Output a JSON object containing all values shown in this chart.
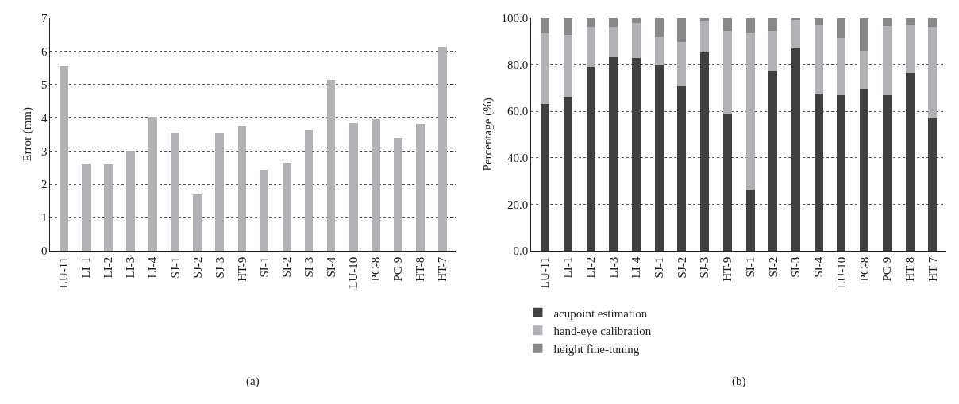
{
  "chart_data": [
    {
      "type": "bar",
      "ylabel": "Error (mm)",
      "annotations": [
        "(a)"
      ],
      "categories": [
        "LU-11",
        "LI-1",
        "LI-2",
        "LI-3",
        "LI-4",
        "SJ-1",
        "SJ-2",
        "SJ-3",
        "HT-9",
        "SI-1",
        "SI-2",
        "SI-3",
        "SI-4",
        "LU-10",
        "PC-8",
        "PC-9",
        "HT-8",
        "HT-7"
      ],
      "values": [
        5.57,
        2.63,
        2.59,
        3.0,
        4.04,
        3.55,
        1.7,
        3.53,
        3.74,
        2.44,
        2.65,
        3.63,
        5.13,
        3.85,
        3.96,
        3.39,
        3.81,
        6.13
      ],
      "color": "#b1b2b6",
      "ylim": [
        0,
        7
      ],
      "yticks": [
        0,
        1,
        2,
        3,
        4,
        5,
        6,
        7
      ],
      "grid": "y"
    },
    {
      "type": "bar",
      "stacked": true,
      "ylabel": "Percentage (%)",
      "annotations": [
        "(b)"
      ],
      "categories": [
        "LU-11",
        "LI-1",
        "LI-2",
        "LI-3",
        "LI-4",
        "SJ-1",
        "SJ-2",
        "SJ-3",
        "HT-9",
        "SI-1",
        "SI-2",
        "SI-3",
        "SI-4",
        "LU-10",
        "PC-8",
        "PC-9",
        "HT-8",
        "HT-7"
      ],
      "series": [
        {
          "name": "acupoint estimation",
          "color": "#404041",
          "values": [
            63.2,
            66.1,
            78.9,
            83.3,
            82.9,
            79.7,
            71.0,
            85.1,
            58.9,
            26.3,
            77.1,
            86.9,
            67.6,
            66.8,
            69.4,
            66.8,
            76.4,
            57.0
          ]
        },
        {
          "name": "hand-eye calibration",
          "color": "#b1b2b6",
          "values": [
            30.3,
            26.8,
            17.1,
            12.8,
            15.1,
            12.4,
            18.8,
            13.9,
            35.7,
            67.6,
            17.2,
            12.5,
            29.2,
            24.5,
            16.4,
            29.6,
            20.7,
            39.1
          ]
        },
        {
          "name": "height fine-tuning",
          "color": "#87888a",
          "values": [
            6.5,
            7.1,
            4.0,
            3.9,
            2.0,
            7.9,
            10.2,
            1.0,
            5.4,
            6.1,
            5.7,
            0.6,
            3.2,
            8.7,
            14.2,
            3.6,
            2.9,
            3.9
          ]
        }
      ],
      "ylim": [
        0,
        100
      ],
      "yticks": [
        {
          "value": 0,
          "label": "0.0"
        },
        {
          "value": 20,
          "label": "20.0"
        },
        {
          "value": 40,
          "label": "40.0"
        },
        {
          "value": 60,
          "label": "60.0"
        },
        {
          "value": 80,
          "label": "80.0"
        },
        {
          "value": 100,
          "label": "100.0"
        }
      ],
      "grid": "y",
      "legend": "bottom"
    }
  ]
}
